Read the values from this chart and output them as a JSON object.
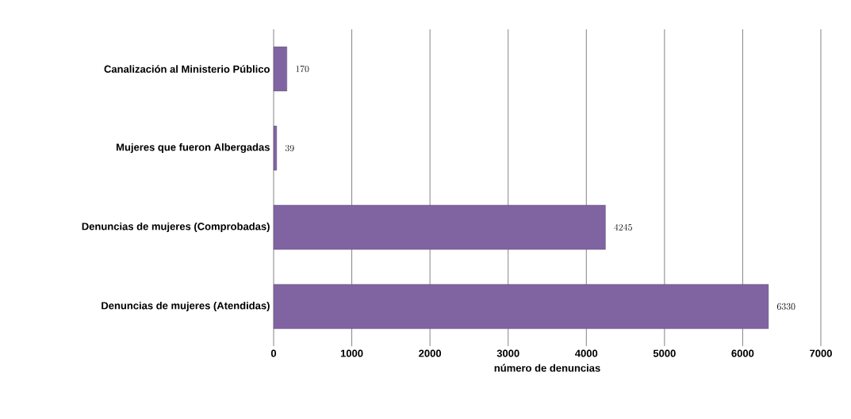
{
  "chart_data": {
    "type": "bar",
    "orientation": "horizontal",
    "categories": [
      "Canalización al Ministerio Público",
      "Mujeres que fueron Albergadas",
      "Denuncias de mujeres (Comprobadas)",
      "Denuncias de mujeres (Atendidas)"
    ],
    "values": [
      170,
      39,
      4245,
      6330
    ],
    "color": "#8064a2",
    "xlabel": "número de denuncias",
    "xlim": [
      0,
      7000
    ],
    "xticks": [
      0,
      1000,
      2000,
      3000,
      4000,
      5000,
      6000,
      7000
    ],
    "grid": "x",
    "data_labels": true
  }
}
